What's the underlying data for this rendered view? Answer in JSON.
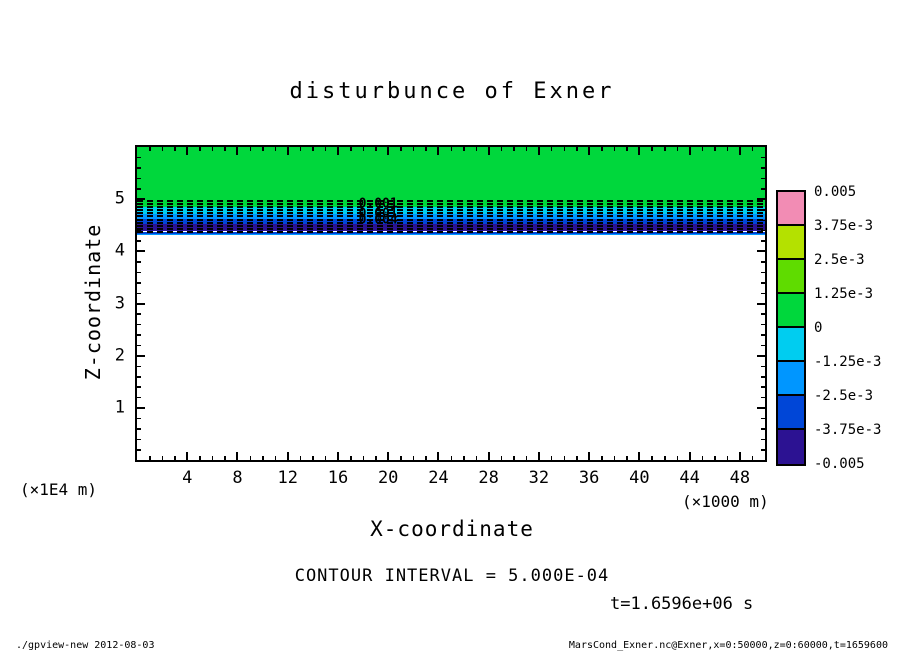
{
  "title": "disturbunce of Exner",
  "axis": {
    "x_label": "X-coordinate",
    "x_unit": "(×1000 m)",
    "y_label": "Z-coordinate",
    "y_unit": "(×1E4 m)"
  },
  "annotations": {
    "contour_interval": "CONTOUR INTERVAL = 5.000E-04",
    "time": "t=1.6596e+06 s"
  },
  "footer": {
    "left": "./gpview-new  2012-08-03",
    "right": "MarsCond_Exner.nc@Exner,x=0:50000,z=0:60000,t=1659600"
  },
  "colorbar": {
    "labels": [
      "0.005",
      "3.75e-3",
      "2.5e-3",
      "1.25e-3",
      "0",
      "-1.25e-3",
      "-2.5e-3",
      "-3.75e-3",
      "-0.005"
    ],
    "colors": [
      "#f28cb4",
      "#b4e100",
      "#5fdc00",
      "#00d73c",
      "#00cdf0",
      "#0096ff",
      "#0046d7",
      "#2c1292"
    ]
  },
  "chart_data": {
    "type": "heatmap",
    "title": "disturbunce of Exner",
    "xlabel": "X-coordinate (×1000 m)",
    "ylabel": "Z-coordinate (×1E4 m)",
    "x_range": [
      0,
      50
    ],
    "y_range": [
      0,
      6
    ],
    "x_major_ticks": [
      4,
      8,
      12,
      16,
      20,
      24,
      28,
      32,
      36,
      40,
      44,
      48
    ],
    "x_minor_step": 1,
    "y_major_ticks": [
      5,
      4,
      3,
      2,
      1
    ],
    "y_minor_step": 0.2,
    "contour_interval": 0.0005,
    "time_seconds": "1.6596e+06",
    "shade_levels": [
      -0.005,
      -0.00375,
      -0.0025,
      -0.00125,
      0,
      0.00125,
      0.0025,
      0.00375,
      0.005
    ],
    "bands": [
      {
        "z_from": 4.85,
        "z_to": 6.0,
        "value_range": "0 to 1.25e-3",
        "color": "#00d73c"
      },
      {
        "z_from": 4.72,
        "z_to": 4.85,
        "value_range": "-1.25e-3 to 0",
        "color": "#00cdf0"
      },
      {
        "z_from": 4.62,
        "z_to": 4.72,
        "value_range": "-2.5e-3 to -1.25e-3",
        "color": "#0096ff"
      },
      {
        "z_from": 4.53,
        "z_to": 4.62,
        "value_range": "-3.75e-3 to -2.5e-3",
        "color": "#0046d7"
      },
      {
        "z_from": 4.38,
        "z_to": 4.53,
        "value_range": "-0.005 to -3.75e-3",
        "color": "#2c1292"
      },
      {
        "z_from": 4.34,
        "z_to": 4.38,
        "value_range": "-3.75e-3 to -2.5e-3",
        "color": "#0046d7"
      },
      {
        "z_from": 4.31,
        "z_to": 4.34,
        "value_range": "-2.5e-3 to -1.25e-3",
        "color": "#0096ff"
      },
      {
        "z_from": 0.0,
        "z_to": 4.31,
        "value_range": "0 (unshaded)",
        "color": "#ffffff"
      }
    ],
    "dashed_contour_z": [
      4.97,
      4.91,
      4.85,
      4.79,
      4.73,
      4.67,
      4.61,
      4.55,
      4.49,
      4.43,
      4.37
    ],
    "contour_labels": [
      {
        "text": "0.001",
        "x": 19.2,
        "z": 4.9
      },
      {
        "text": "0.001",
        "x": 19.2,
        "z": 4.72
      },
      {
        "text": "0.004",
        "x": 19.2,
        "z": 4.6
      }
    ]
  }
}
